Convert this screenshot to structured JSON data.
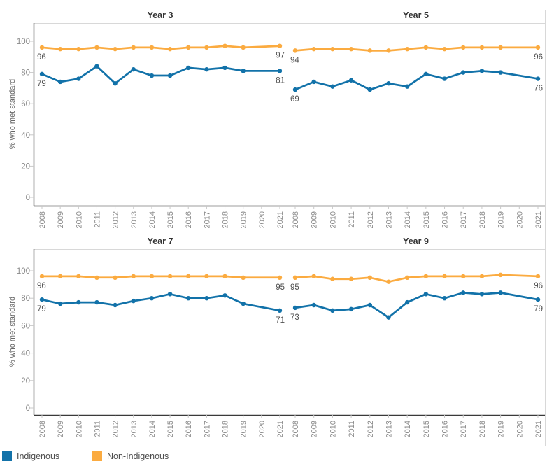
{
  "figure": {
    "ylabel": "% who met standard",
    "yticks": [
      0,
      20,
      40,
      60,
      80,
      100
    ],
    "x_tick_labels": [
      "2008",
      "2009",
      "2010",
      "2011",
      "2012",
      "2013",
      "2014",
      "2015",
      "2016",
      "2017",
      "2018",
      "2019",
      "2020",
      "2021"
    ],
    "legend": [
      {
        "label": "Indigenous",
        "color": "#1272a9"
      },
      {
        "label": "Non-Indigenous",
        "color": "#fbab40"
      }
    ],
    "colors": {
      "indigenous": "#1272a9",
      "non_indigenous": "#fbab40",
      "axis": "#3a3a3a",
      "grid_border": "#d8d8d8",
      "tick": "#c8c8c8",
      "tick_label": "#8a8a8a",
      "annotation": "#4f4f4f"
    }
  },
  "chart_data": [
    {
      "type": "line",
      "title": "Year 3",
      "xlabel": "",
      "ylabel": "% who met standard",
      "ylim": [
        0,
        110
      ],
      "x": [
        2008,
        2009,
        2010,
        2011,
        2012,
        2013,
        2014,
        2015,
        2016,
        2017,
        2018,
        2019,
        2021
      ],
      "note_missing_year": 2020,
      "series": [
        {
          "name": "Indigenous",
          "color": "#1272a9",
          "values": [
            79,
            74,
            76,
            84,
            73,
            82,
            78,
            78,
            83,
            82,
            83,
            81,
            81
          ],
          "first_label": 79,
          "last_label": 81
        },
        {
          "name": "Non-Indigenous",
          "color": "#fbab40",
          "values": [
            96,
            95,
            95,
            96,
            95,
            96,
            96,
            95,
            96,
            96,
            97,
            96,
            97
          ],
          "first_label": 96,
          "last_label": 97
        }
      ]
    },
    {
      "type": "line",
      "title": "Year 5",
      "xlabel": "",
      "ylabel": "% who met standard",
      "ylim": [
        0,
        110
      ],
      "x": [
        2008,
        2009,
        2010,
        2011,
        2012,
        2013,
        2014,
        2015,
        2016,
        2017,
        2018,
        2019,
        2021
      ],
      "note_missing_year": 2020,
      "series": [
        {
          "name": "Indigenous",
          "color": "#1272a9",
          "values": [
            69,
            74,
            71,
            75,
            69,
            73,
            71,
            79,
            76,
            80,
            81,
            80,
            76
          ],
          "first_label": 69,
          "last_label": 76
        },
        {
          "name": "Non-Indigenous",
          "color": "#fbab40",
          "values": [
            94,
            95,
            95,
            95,
            94,
            94,
            95,
            96,
            95,
            96,
            96,
            96,
            96
          ],
          "first_label": 94,
          "last_label": 96
        }
      ]
    },
    {
      "type": "line",
      "title": "Year 7",
      "xlabel": "",
      "ylabel": "% who met standard",
      "ylim": [
        0,
        110
      ],
      "x": [
        2008,
        2009,
        2010,
        2011,
        2012,
        2013,
        2014,
        2015,
        2016,
        2017,
        2018,
        2019,
        2021
      ],
      "note_missing_year": 2020,
      "series": [
        {
          "name": "Indigenous",
          "color": "#1272a9",
          "values": [
            79,
            76,
            77,
            77,
            75,
            78,
            80,
            83,
            80,
            80,
            82,
            76,
            71
          ],
          "first_label": 79,
          "last_label": 71
        },
        {
          "name": "Non-Indigenous",
          "color": "#fbab40",
          "values": [
            96,
            96,
            96,
            95,
            95,
            96,
            96,
            96,
            96,
            96,
            96,
            95,
            95
          ],
          "first_label": 96,
          "last_label": 95
        }
      ]
    },
    {
      "type": "line",
      "title": "Year 9",
      "xlabel": "",
      "ylabel": "% who met standard",
      "ylim": [
        0,
        110
      ],
      "x": [
        2008,
        2009,
        2010,
        2011,
        2012,
        2013,
        2014,
        2015,
        2016,
        2017,
        2018,
        2019,
        2021
      ],
      "note_missing_year": 2020,
      "series": [
        {
          "name": "Indigenous",
          "color": "#1272a9",
          "values": [
            73,
            75,
            71,
            72,
            75,
            66,
            77,
            83,
            80,
            84,
            83,
            84,
            79
          ],
          "first_label": 73,
          "last_label": 79
        },
        {
          "name": "Non-Indigenous",
          "color": "#fbab40",
          "values": [
            95,
            96,
            94,
            94,
            95,
            92,
            95,
            96,
            96,
            96,
            96,
            97,
            96
          ],
          "first_label": 95,
          "last_label": 96
        }
      ]
    }
  ]
}
